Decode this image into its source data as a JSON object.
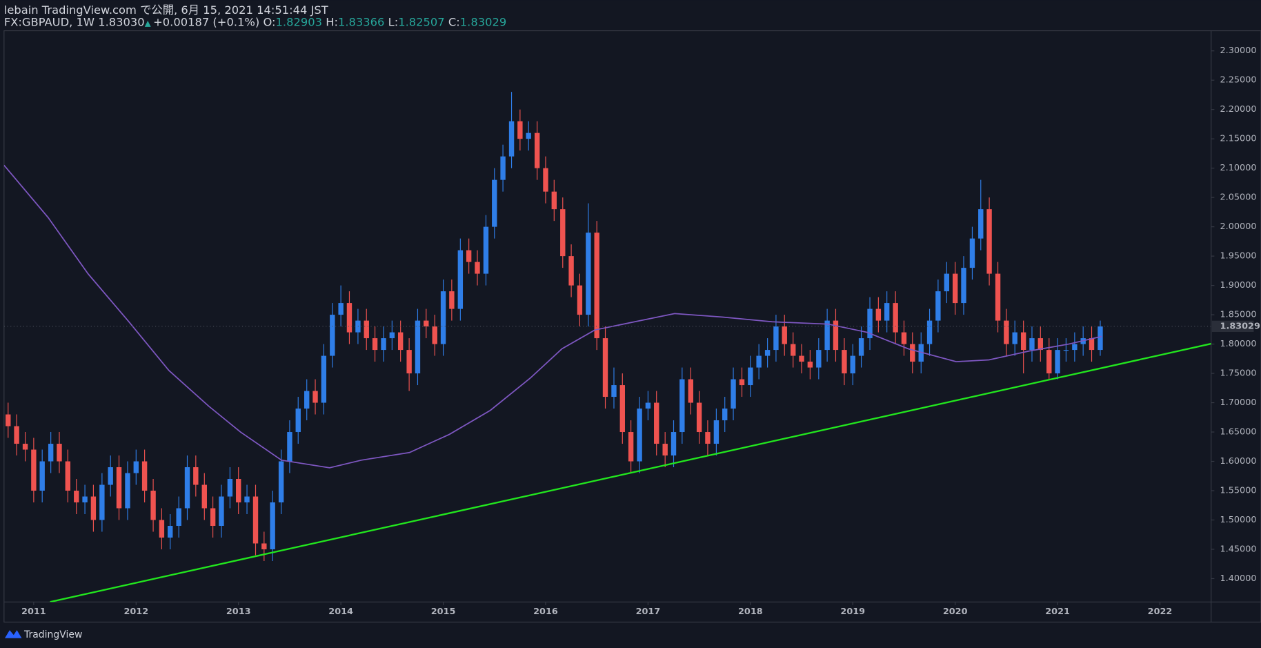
{
  "header": {
    "title": "lebain TradingView.com で公開, 6月 15, 2021 14:51:44 JST",
    "symbol": "FX:GBPAUD, 1W 1.83030",
    "direction": "▲",
    "change": "+0.00187 (+0.1%)",
    "ohlc": [
      {
        "label": "O:",
        "value": "1.82903"
      },
      {
        "label": "H:",
        "value": "1.83366"
      },
      {
        "label": "L:",
        "value": "1.82507"
      },
      {
        "label": "C:",
        "value": "1.83029"
      }
    ]
  },
  "chart_data": {
    "type": "candlestick",
    "up_color": "#2f7ee8",
    "down_color": "#ef5350",
    "x": [
      2010.75,
      2010.833,
      2010.917,
      2011,
      2011.083,
      2011.167,
      2011.25,
      2011.333,
      2011.417,
      2011.5,
      2011.583,
      2011.667,
      2011.75,
      2011.833,
      2011.917,
      2012,
      2012.083,
      2012.167,
      2012.25,
      2012.333,
      2012.417,
      2012.5,
      2012.583,
      2012.667,
      2012.75,
      2012.833,
      2012.917,
      2013,
      2013.083,
      2013.167,
      2013.25,
      2013.333,
      2013.417,
      2013.5,
      2013.583,
      2013.667,
      2013.75,
      2013.833,
      2013.917,
      2014,
      2014.083,
      2014.167,
      2014.25,
      2014.333,
      2014.417,
      2014.5,
      2014.583,
      2014.667,
      2014.75,
      2014.833,
      2014.917,
      2015,
      2015.083,
      2015.167,
      2015.25,
      2015.333,
      2015.417,
      2015.5,
      2015.583,
      2015.667,
      2015.75,
      2015.833,
      2015.917,
      2016,
      2016.083,
      2016.167,
      2016.25,
      2016.333,
      2016.417,
      2016.5,
      2016.583,
      2016.667,
      2016.75,
      2016.833,
      2016.917,
      2017,
      2017.083,
      2017.167,
      2017.25,
      2017.333,
      2017.417,
      2017.5,
      2017.583,
      2017.667,
      2017.75,
      2017.833,
      2017.917,
      2018,
      2018.083,
      2018.167,
      2018.25,
      2018.333,
      2018.417,
      2018.5,
      2018.583,
      2018.667,
      2018.75,
      2018.833,
      2018.917,
      2019,
      2019.083,
      2019.167,
      2019.25,
      2019.333,
      2019.417,
      2019.5,
      2019.583,
      2019.667,
      2019.75,
      2019.833,
      2019.917,
      2020,
      2020.083,
      2020.167,
      2020.25,
      2020.333,
      2020.417,
      2020.5,
      2020.583,
      2020.667,
      2020.75,
      2020.833,
      2020.917,
      2021,
      2021.083,
      2021.167,
      2021.25,
      2021.333,
      2021.417
    ],
    "open": [
      1.68,
      1.66,
      1.63,
      1.62,
      1.55,
      1.6,
      1.63,
      1.6,
      1.55,
      1.53,
      1.54,
      1.5,
      1.56,
      1.59,
      1.52,
      1.58,
      1.6,
      1.55,
      1.5,
      1.47,
      1.49,
      1.52,
      1.59,
      1.56,
      1.52,
      1.49,
      1.54,
      1.57,
      1.53,
      1.54,
      1.46,
      1.45,
      1.53,
      1.6,
      1.65,
      1.69,
      1.72,
      1.7,
      1.78,
      1.85,
      1.87,
      1.82,
      1.84,
      1.81,
      1.79,
      1.81,
      1.82,
      1.79,
      1.75,
      1.84,
      1.83,
      1.8,
      1.89,
      1.86,
      1.96,
      1.94,
      1.92,
      2.0,
      2.08,
      2.12,
      2.18,
      2.15,
      2.16,
      2.1,
      2.06,
      2.03,
      1.95,
      1.9,
      1.85,
      1.99,
      1.81,
      1.71,
      1.73,
      1.65,
      1.6,
      1.69,
      1.7,
      1.63,
      1.61,
      1.65,
      1.74,
      1.7,
      1.65,
      1.63,
      1.67,
      1.69,
      1.74,
      1.73,
      1.76,
      1.78,
      1.79,
      1.83,
      1.8,
      1.78,
      1.77,
      1.76,
      1.79,
      1.84,
      1.79,
      1.75,
      1.78,
      1.81,
      1.86,
      1.84,
      1.87,
      1.82,
      1.8,
      1.77,
      1.8,
      1.84,
      1.89,
      1.92,
      1.87,
      1.93,
      1.98,
      2.03,
      1.92,
      1.84,
      1.8,
      1.82,
      1.79,
      1.81,
      1.79,
      1.75,
      1.79,
      1.79,
      1.8,
      1.81,
      1.79
    ],
    "high": [
      1.7,
      1.68,
      1.65,
      1.64,
      1.62,
      1.65,
      1.65,
      1.62,
      1.57,
      1.56,
      1.56,
      1.58,
      1.61,
      1.61,
      1.6,
      1.62,
      1.62,
      1.57,
      1.52,
      1.51,
      1.54,
      1.61,
      1.61,
      1.58,
      1.54,
      1.56,
      1.59,
      1.59,
      1.56,
      1.56,
      1.48,
      1.55,
      1.62,
      1.67,
      1.71,
      1.74,
      1.74,
      1.8,
      1.87,
      1.9,
      1.89,
      1.86,
      1.86,
      1.83,
      1.83,
      1.84,
      1.84,
      1.81,
      1.86,
      1.86,
      1.85,
      1.91,
      1.91,
      1.98,
      1.98,
      1.96,
      2.02,
      2.1,
      2.14,
      2.23,
      2.2,
      2.18,
      2.18,
      2.12,
      2.08,
      2.05,
      1.97,
      1.92,
      2.04,
      2.01,
      1.83,
      1.76,
      1.75,
      1.67,
      1.71,
      1.72,
      1.72,
      1.65,
      1.67,
      1.76,
      1.76,
      1.72,
      1.67,
      1.69,
      1.71,
      1.76,
      1.76,
      1.78,
      1.8,
      1.81,
      1.85,
      1.85,
      1.82,
      1.8,
      1.79,
      1.81,
      1.86,
      1.86,
      1.81,
      1.8,
      1.83,
      1.88,
      1.88,
      1.89,
      1.89,
      1.84,
      1.82,
      1.82,
      1.86,
      1.91,
      1.94,
      1.94,
      1.95,
      2.0,
      2.08,
      2.05,
      1.94,
      1.86,
      1.84,
      1.84,
      1.83,
      1.83,
      1.81,
      1.81,
      1.81,
      1.82,
      1.83,
      1.83,
      1.84
    ],
    "low": [
      1.64,
      1.61,
      1.6,
      1.53,
      1.53,
      1.58,
      1.58,
      1.53,
      1.51,
      1.51,
      1.48,
      1.48,
      1.54,
      1.5,
      1.5,
      1.56,
      1.53,
      1.48,
      1.45,
      1.45,
      1.47,
      1.5,
      1.54,
      1.5,
      1.47,
      1.47,
      1.52,
      1.51,
      1.51,
      1.44,
      1.43,
      1.43,
      1.51,
      1.58,
      1.63,
      1.67,
      1.68,
      1.68,
      1.76,
      1.83,
      1.8,
      1.8,
      1.79,
      1.77,
      1.77,
      1.79,
      1.77,
      1.72,
      1.73,
      1.81,
      1.78,
      1.78,
      1.84,
      1.84,
      1.92,
      1.9,
      1.9,
      1.98,
      2.06,
      2.1,
      2.13,
      2.13,
      2.08,
      2.04,
      2.01,
      1.93,
      1.88,
      1.83,
      1.83,
      1.79,
      1.69,
      1.69,
      1.63,
      1.58,
      1.58,
      1.67,
      1.61,
      1.59,
      1.59,
      1.63,
      1.68,
      1.63,
      1.61,
      1.61,
      1.65,
      1.67,
      1.71,
      1.71,
      1.74,
      1.76,
      1.77,
      1.78,
      1.76,
      1.75,
      1.74,
      1.74,
      1.77,
      1.77,
      1.73,
      1.73,
      1.76,
      1.79,
      1.82,
      1.82,
      1.8,
      1.78,
      1.75,
      1.75,
      1.78,
      1.82,
      1.87,
      1.85,
      1.85,
      1.91,
      1.96,
      1.9,
      1.82,
      1.78,
      1.78,
      1.75,
      1.77,
      1.77,
      1.74,
      1.74,
      1.77,
      1.77,
      1.78,
      1.77,
      1.78
    ],
    "close": [
      1.66,
      1.63,
      1.62,
      1.55,
      1.6,
      1.63,
      1.6,
      1.55,
      1.53,
      1.54,
      1.5,
      1.56,
      1.59,
      1.52,
      1.58,
      1.6,
      1.55,
      1.5,
      1.47,
      1.49,
      1.52,
      1.59,
      1.56,
      1.52,
      1.49,
      1.54,
      1.57,
      1.53,
      1.54,
      1.46,
      1.45,
      1.53,
      1.6,
      1.65,
      1.69,
      1.72,
      1.7,
      1.78,
      1.85,
      1.87,
      1.82,
      1.84,
      1.81,
      1.79,
      1.81,
      1.82,
      1.79,
      1.75,
      1.84,
      1.83,
      1.8,
      1.89,
      1.86,
      1.96,
      1.94,
      1.92,
      2.0,
      2.08,
      2.12,
      2.18,
      2.15,
      2.16,
      2.1,
      2.06,
      2.03,
      1.95,
      1.9,
      1.85,
      1.99,
      1.81,
      1.71,
      1.73,
      1.65,
      1.6,
      1.69,
      1.7,
      1.63,
      1.61,
      1.65,
      1.74,
      1.7,
      1.65,
      1.63,
      1.67,
      1.69,
      1.74,
      1.73,
      1.76,
      1.78,
      1.79,
      1.83,
      1.8,
      1.78,
      1.77,
      1.76,
      1.79,
      1.84,
      1.79,
      1.75,
      1.78,
      1.81,
      1.86,
      1.84,
      1.87,
      1.82,
      1.8,
      1.77,
      1.8,
      1.84,
      1.89,
      1.92,
      1.87,
      1.93,
      1.98,
      2.03,
      1.92,
      1.84,
      1.8,
      1.82,
      1.79,
      1.81,
      1.79,
      1.75,
      1.79,
      1.79,
      1.8,
      1.81,
      1.79,
      1.83
    ],
    "overlays": [
      {
        "color": "#7e57c2",
        "x": [
          2010.71,
          2011.14,
          2011.53,
          2011.93,
          2012.32,
          2012.71,
          2013.02,
          2013.42,
          2013.89,
          2014.2,
          2014.67,
          2015.06,
          2015.46,
          2015.85,
          2016.16,
          2016.48,
          2016.87,
          2017.26,
          2017.73,
          2018.21,
          2018.76,
          2019.14,
          2019.54,
          2020.01,
          2020.33,
          2020.72,
          2021.11,
          2021.43
        ],
        "values": [
          2.105,
          2.016,
          1.92,
          1.838,
          1.755,
          1.694,
          1.65,
          1.602,
          1.589,
          1.602,
          1.615,
          1.646,
          1.687,
          1.742,
          1.792,
          1.824,
          1.838,
          1.852,
          1.846,
          1.838,
          1.834,
          1.82,
          1.792,
          1.77,
          1.773,
          1.788,
          1.8,
          1.813
        ]
      },
      {
        "color": "#22e61e",
        "x": [
          2011.16,
          2022.5
        ],
        "values": [
          1.3602,
          1.8006
        ]
      }
    ],
    "last_price": {
      "value": 1.83029,
      "label": "1.83029"
    },
    "xlim": [
      2010.71,
      2022.5
    ],
    "xticks": [
      2011,
      2012,
      2013,
      2014,
      2015,
      2016,
      2017,
      2018,
      2019,
      2020,
      2021,
      2022
    ],
    "ylim": [
      1.3602,
      2.3343
    ],
    "yticks": [
      {
        "value": 1.4,
        "label": "1.40000"
      },
      {
        "value": 1.45,
        "label": "1.45000"
      },
      {
        "value": 1.5,
        "label": "1.50000"
      },
      {
        "value": 1.55,
        "label": "1.55000"
      },
      {
        "value": 1.6,
        "label": "1.60000"
      },
      {
        "value": 1.65,
        "label": "1.65000"
      },
      {
        "value": 1.7,
        "label": "1.70000"
      },
      {
        "value": 1.75,
        "label": "1.75000"
      },
      {
        "value": 1.8,
        "label": "1.80000"
      },
      {
        "value": 1.85,
        "label": "1.85000"
      },
      {
        "value": 1.9,
        "label": "1.90000"
      },
      {
        "value": 1.95,
        "label": "1.95000"
      },
      {
        "value": 2.0,
        "label": "2.00000"
      },
      {
        "value": 2.05,
        "label": "2.05000"
      },
      {
        "value": 2.1,
        "label": "2.10000"
      },
      {
        "value": 2.15,
        "label": "2.15000"
      },
      {
        "value": 2.2,
        "label": "2.20000"
      },
      {
        "value": 2.25,
        "label": "2.25000"
      },
      {
        "value": 2.3,
        "label": "2.30000"
      }
    ]
  },
  "footer": {
    "brand": "TradingView"
  }
}
